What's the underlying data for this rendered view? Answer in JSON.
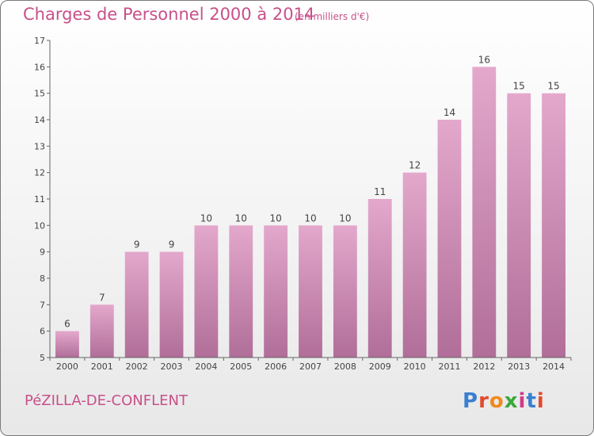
{
  "header": {
    "title": "Charges de Personnel 2000 à 2014",
    "subtitle": "(en milliers d'€)"
  },
  "footer": {
    "commune": "PéZILLA-DE-CONFLENT",
    "brand": "Proxiti",
    "brand_colors": [
      "#3a7fd0",
      "#e24a2c",
      "#f08a1c",
      "#3aa83a",
      "#d13b8a",
      "#3a7fd0",
      "#e24a2c"
    ]
  },
  "colors": {
    "accent": "#c8508a",
    "bar_top": "#e4a8cc",
    "bar_bottom": "#b06e98",
    "axis": "#666666"
  },
  "chart_data": {
    "type": "bar",
    "title": "Charges de Personnel 2000 à 2014",
    "subtitle": "(en milliers d'€)",
    "categories": [
      "2000",
      "2001",
      "2002",
      "2003",
      "2004",
      "2005",
      "2006",
      "2007",
      "2008",
      "2009",
      "2010",
      "2011",
      "2012",
      "2013",
      "2014"
    ],
    "values": [
      6,
      7,
      9,
      9,
      10,
      10,
      10,
      10,
      10,
      11,
      12,
      14,
      16,
      15,
      15
    ],
    "data_labels": [
      "6",
      "7",
      "9",
      "9",
      "10",
      "10",
      "10",
      "10",
      "10",
      "11",
      "12",
      "14",
      "16",
      "15",
      "15"
    ],
    "ylim": [
      5,
      17
    ],
    "yticks": [
      "5",
      "6",
      "7",
      "8",
      "9",
      "10",
      "11",
      "12",
      "13",
      "14",
      "15",
      "16",
      "17"
    ],
    "xlabel": "",
    "ylabel": "",
    "grid": false,
    "legend": "none"
  }
}
